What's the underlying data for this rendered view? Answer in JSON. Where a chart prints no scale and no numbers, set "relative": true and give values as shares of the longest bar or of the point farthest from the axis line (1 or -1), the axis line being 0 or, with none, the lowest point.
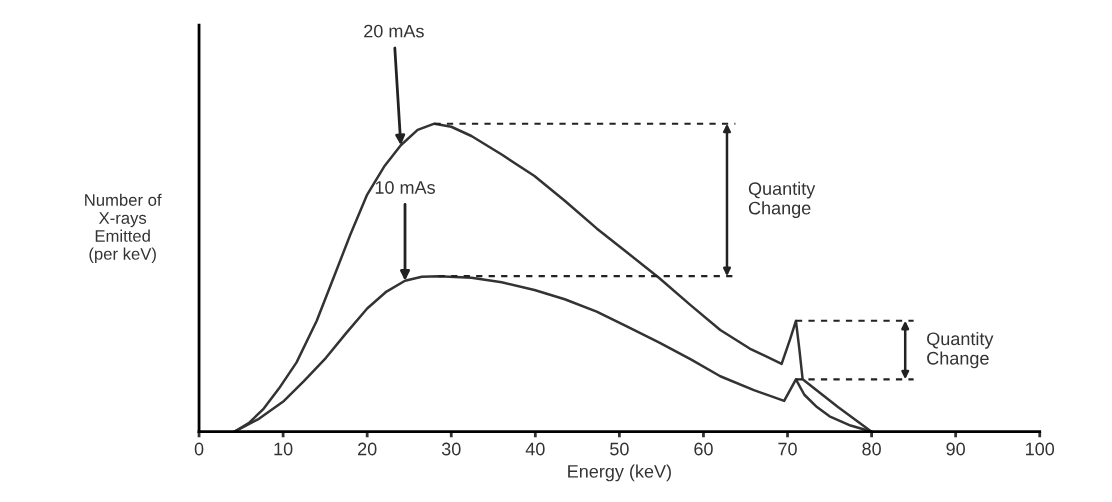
{
  "chart_data": {
    "type": "line",
    "relative": true,
    "xlabel": "Energy (keV)",
    "ylabel": "Number of\nX-rays\nEmitted\n(per keV)",
    "xlim": [
      0,
      100
    ],
    "xticks": [
      0,
      10,
      20,
      30,
      40,
      50,
      60,
      70,
      80,
      90,
      100
    ],
    "grid": false,
    "marker": "none",
    "line_style": "solid",
    "series": [
      {
        "color": "#333333",
        "x": [
          4.2,
          6,
          7.7,
          9.5,
          11.6,
          14,
          16,
          18,
          20,
          22,
          24,
          26,
          28,
          30,
          32.4,
          36,
          39.9,
          43.5,
          47.3,
          51,
          54.7,
          58.5,
          62,
          65.5,
          69.3,
          70.3,
          71,
          71.4,
          71.8,
          76,
          80
        ],
        "values": [
          0,
          0.03,
          0.075,
          0.14,
          0.225,
          0.36,
          0.5,
          0.64,
          0.77,
          0.86,
          0.93,
          0.98,
          1.0,
          0.99,
          0.96,
          0.9,
          0.83,
          0.75,
          0.66,
          0.58,
          0.5,
          0.41,
          0.33,
          0.27,
          0.22,
          0.3,
          0.36,
          0.27,
          0.17,
          0.08,
          0
        ]
      },
      {
        "color": "#333333",
        "x": [
          4.2,
          7,
          10.1,
          12.5,
          15.1,
          17.5,
          20,
          22.3,
          24.5,
          26.5,
          28.5,
          32.4,
          36,
          39.9,
          43.5,
          47.3,
          51,
          54.7,
          58.5,
          62,
          66,
          69.6,
          70.4,
          71,
          72,
          73.5,
          75,
          77.5,
          80
        ],
        "values": [
          0,
          0.04,
          0.1,
          0.165,
          0.24,
          0.32,
          0.4,
          0.455,
          0.49,
          0.503,
          0.505,
          0.5,
          0.485,
          0.46,
          0.43,
          0.39,
          0.34,
          0.29,
          0.235,
          0.18,
          0.135,
          0.1,
          0.14,
          0.17,
          0.12,
          0.08,
          0.05,
          0.02,
          0
        ]
      }
    ],
    "annotations": [
      {
        "text": "20 mAs",
        "x": 24,
        "y": 0.93
      },
      {
        "text": "10 mAs",
        "x": 24.5,
        "y": 0.49
      },
      "Quantity Change",
      "Quantity Change"
    ]
  }
}
